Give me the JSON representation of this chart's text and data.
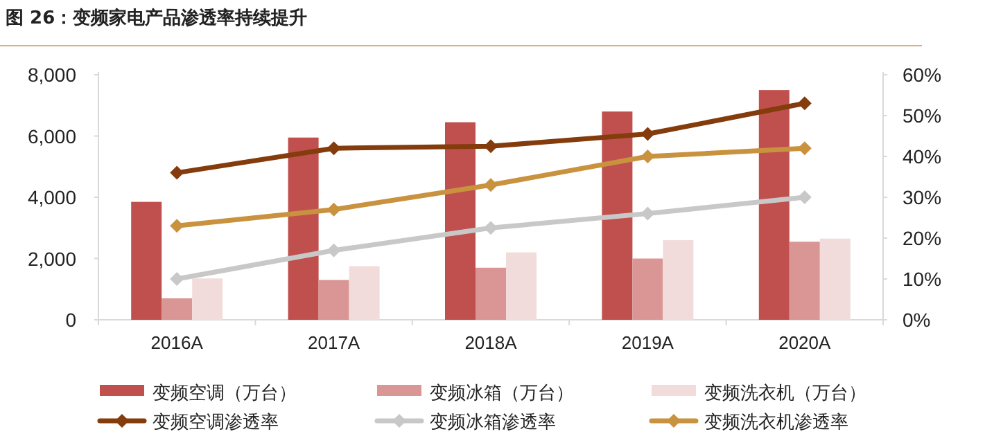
{
  "chart_data": {
    "type": "bar",
    "title": "图 26：变频家电产品渗透率持续提升",
    "categories": [
      "2016A",
      "2017A",
      "2018A",
      "2019A",
      "2020A"
    ],
    "series": [
      {
        "name": "变频空调（万台）",
        "color": "#c0504d",
        "values": [
          3850,
          5950,
          6450,
          6800,
          7500
        ]
      },
      {
        "name": "变频冰箱（万台）",
        "color": "#d99694",
        "values": [
          700,
          1300,
          1700,
          2000,
          2550
        ]
      },
      {
        "name": "变频洗衣机（万台）",
        "color": "#f2dcdb",
        "values": [
          1350,
          1750,
          2200,
          2600,
          2650
        ]
      },
      {
        "name": "变频空调渗透率",
        "type": "line",
        "axis": "y2",
        "marker": "diamond",
        "color": "#843c0c",
        "values": [
          36,
          42,
          42.5,
          45.5,
          53
        ]
      },
      {
        "name": "变频冰箱渗透率",
        "type": "line",
        "axis": "y2",
        "marker": "diamond",
        "color": "#c8c8c8",
        "values": [
          10,
          17,
          22.5,
          26,
          30
        ]
      },
      {
        "name": "变频洗衣机渗透率",
        "type": "line",
        "axis": "y2",
        "marker": "diamond",
        "color": "#c9923f",
        "values": [
          23,
          27,
          33,
          40,
          42
        ]
      }
    ],
    "ylim": [
      0,
      8000
    ],
    "yticks": [
      0,
      {
        "value": 2000,
        "label": "2,000"
      },
      {
        "value": 4000,
        "label": "4,000"
      },
      {
        "value": 6000,
        "label": "6,000"
      },
      {
        "value": 8000,
        "label": "8,000"
      }
    ],
    "y2lim": [
      0,
      60
    ],
    "y2ticks": [
      {
        "value": 0,
        "label": "0%"
      },
      {
        "value": 10,
        "label": "10%"
      },
      {
        "value": 20,
        "label": "20%"
      },
      {
        "value": 30,
        "label": "30%"
      },
      {
        "value": 40,
        "label": "40%"
      },
      {
        "value": 50,
        "label": "50%"
      },
      {
        "value": 60,
        "label": "60%"
      }
    ],
    "legend": "bottom"
  }
}
